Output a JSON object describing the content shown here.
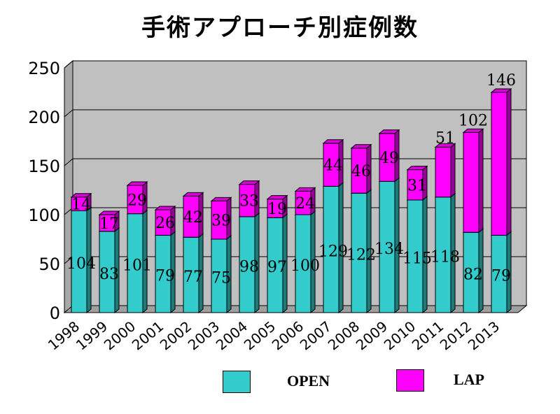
{
  "chart_data": {
    "type": "bar",
    "stacked": true,
    "title": "手術アプローチ別症例数",
    "categories": [
      "1998",
      "1999",
      "2000",
      "2001",
      "2002",
      "2003",
      "2004",
      "2005",
      "2006",
      "2007",
      "2008",
      "2009",
      "2010",
      "2011",
      "2012",
      "2013"
    ],
    "series": [
      {
        "name": "OPEN",
        "color": "#33CCCC",
        "values": [
          104,
          83,
          101,
          79,
          77,
          75,
          98,
          97,
          100,
          129,
          122,
          134,
          115,
          118,
          82,
          79
        ]
      },
      {
        "name": "LAP",
        "color": "#FF00FF",
        "values": [
          14,
          17,
          29,
          26,
          42,
          39,
          33,
          19,
          24,
          44,
          46,
          49,
          31,
          51,
          102,
          146
        ]
      }
    ],
    "y_ticks": [
      "0",
      "50",
      "100",
      "150",
      "200",
      "250"
    ],
    "ylim": [
      0,
      250
    ],
    "grid": true,
    "plot_background": "#C0C0C0",
    "legend_position": "bottom"
  }
}
